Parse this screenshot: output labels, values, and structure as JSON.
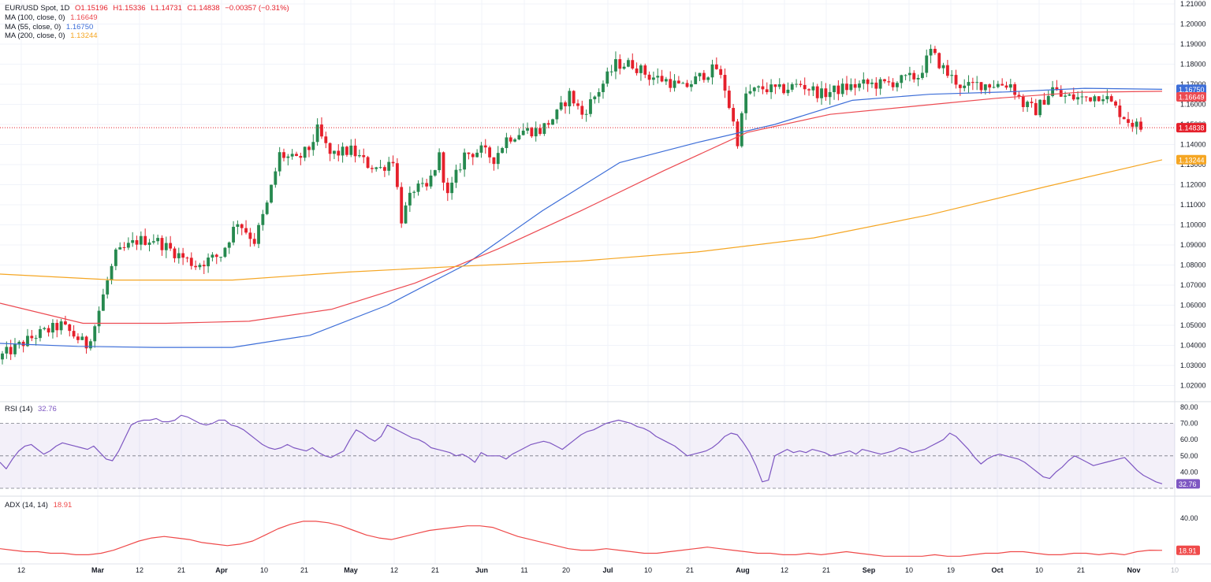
{
  "colors": {
    "up": "#26894f",
    "down": "#e5202b",
    "ma55": "#3d6ed8",
    "ma100": "#ec4a51",
    "ma200": "#f5a623",
    "rsi": "#7e57c2",
    "adx": "#ef4a4a",
    "last_price": "#e5202b"
  },
  "legend": {
    "symbol": "EUR/USD Spot, 1D",
    "open": "O1.15196",
    "high": "H1.15336",
    "low": "L1.14731",
    "close": "C1.14838",
    "change": "−0.00357 (−0.31%)",
    "ma100_label": "MA (100, close, 0)",
    "ma100_value": "1.16649",
    "ma55_label": "MA (55, close, 0)",
    "ma55_value": "1.16750",
    "ma200_label": "MA (200, close, 0)",
    "ma200_value": "1.13244",
    "rsi_label": "RSI (14)",
    "rsi_value": "32.76",
    "adx_label": "ADX (14, 14)",
    "adx_value": "18.91"
  },
  "badges": {
    "ma55": "1.16750",
    "ma100": "1.16649",
    "last": "1.14838",
    "ma200": "1.13244",
    "rsi": "32.76",
    "adx": "18.91"
  },
  "chart_data": [
    {
      "type": "candlestick",
      "title": "EUR/USD Spot, 1D",
      "ylim": [
        1.011,
        1.21
      ],
      "y_ticks": [
        "1.21000",
        "1.20000",
        "1.19000",
        "1.18000",
        "1.17000",
        "1.16000",
        "1.15000",
        "1.14000",
        "1.13000",
        "1.12000",
        "1.11000",
        "1.10000",
        "1.09000",
        "1.08000",
        "1.07000",
        "1.06000",
        "1.05000",
        "1.04000",
        "1.03000",
        "1.02000"
      ],
      "x_ticks": [
        "12",
        "Mar",
        "12",
        "21",
        "Apr",
        "10",
        "21",
        "May",
        "12",
        "21",
        "Jun",
        "11",
        "20",
        "Jul",
        "10",
        "21",
        "Aug",
        "12",
        "21",
        "Sep",
        "10",
        "19",
        "Oct",
        "10",
        "21",
        "Nov",
        "10"
      ],
      "last_price": 1.14838,
      "candles": [],
      "series": [
        {
          "name": "MA (55, close, 0)",
          "values": [
            1.041,
            1.0395,
            1.039,
            1.039,
            1.045,
            1.06,
            1.08,
            1.107,
            1.131,
            1.141,
            1.15,
            1.162,
            1.165,
            1.1662,
            1.168,
            1.1675
          ]
        },
        {
          "name": "MA (100, close, 0)",
          "values": [
            1.061,
            1.051,
            1.051,
            1.052,
            1.058,
            1.071,
            1.088,
            1.107,
            1.127,
            1.146,
            1.155,
            1.159,
            1.163,
            1.166,
            1.1665
          ]
        },
        {
          "name": "MA (200, close, 0)",
          "values": [
            1.0755,
            1.0725,
            1.0725,
            1.0765,
            1.0795,
            1.082,
            1.0865,
            1.0935,
            1.105,
            1.119,
            1.1324
          ]
        }
      ]
    },
    {
      "type": "line",
      "title": "RSI (14)",
      "ylim": [
        30,
        82
      ],
      "y_ticks": [
        "80.00",
        "70.00",
        "60.00",
        "50.00",
        "40.00"
      ],
      "bands": [
        30,
        50,
        70
      ],
      "series": [
        {
          "name": "RSI (14)",
          "values": [
            46,
            42,
            48,
            53,
            56,
            57,
            54,
            51,
            53,
            56,
            58,
            57,
            56,
            55,
            54,
            56,
            52,
            48,
            47,
            53,
            61,
            69,
            71,
            72,
            72,
            73,
            71,
            71,
            72,
            75,
            74,
            72,
            70,
            69,
            70,
            72,
            72,
            69,
            68,
            66,
            63,
            60,
            57,
            55,
            54,
            55,
            57,
            55,
            54,
            53,
            55,
            52,
            50,
            49,
            51,
            53,
            60,
            66,
            64,
            61,
            59,
            62,
            69,
            67,
            65,
            63,
            61,
            60,
            58,
            55,
            54,
            53,
            52,
            50,
            51,
            49,
            46,
            52,
            50,
            50,
            50,
            48,
            51,
            53,
            55,
            57,
            58,
            59,
            58,
            56,
            54,
            57,
            60,
            63,
            65,
            66,
            68,
            70,
            71,
            72,
            71,
            70,
            68,
            67,
            65,
            62,
            60,
            58,
            56,
            53,
            50,
            51,
            52,
            53,
            55,
            58,
            62,
            64,
            63,
            58,
            52,
            44,
            34,
            35,
            50,
            52,
            54,
            52,
            53,
            52,
            54,
            53,
            52,
            50,
            51,
            52,
            53,
            51,
            54,
            53,
            52,
            51,
            52,
            53,
            55,
            54,
            52,
            53,
            54,
            56,
            58,
            60,
            64,
            62,
            58,
            54,
            49,
            45,
            48,
            50,
            51,
            50,
            49,
            48,
            46,
            43,
            40,
            37,
            36,
            40,
            43,
            47,
            50,
            48,
            46,
            44,
            45,
            46,
            47,
            48,
            49,
            45,
            41,
            38,
            36,
            34,
            32.76
          ]
        }
      ]
    },
    {
      "type": "line",
      "title": "ADX (14, 14)",
      "ylim": [
        10,
        46
      ],
      "y_ticks": [
        "40.00"
      ],
      "series": [
        {
          "name": "ADX (14, 14)",
          "values": [
            20,
            19,
            18,
            18,
            17,
            17,
            16,
            16,
            17,
            19,
            22,
            25,
            27,
            28,
            27,
            26,
            24,
            23,
            22,
            23,
            25,
            29,
            33,
            36,
            38,
            38,
            37,
            35,
            32,
            29,
            27,
            26,
            28,
            30,
            32,
            33,
            34,
            35,
            35,
            34,
            31,
            28,
            26,
            24,
            22,
            20,
            19,
            19,
            20,
            19,
            18,
            17,
            17,
            18,
            19,
            20,
            21,
            20,
            19,
            18,
            17,
            17,
            16,
            16,
            17,
            16,
            17,
            18,
            17,
            16,
            15,
            15,
            15,
            15,
            16,
            15,
            15,
            16,
            17,
            17,
            18,
            18,
            17,
            16,
            16,
            17,
            17,
            16,
            17,
            16,
            18,
            19,
            18.91
          ]
        }
      ]
    }
  ]
}
